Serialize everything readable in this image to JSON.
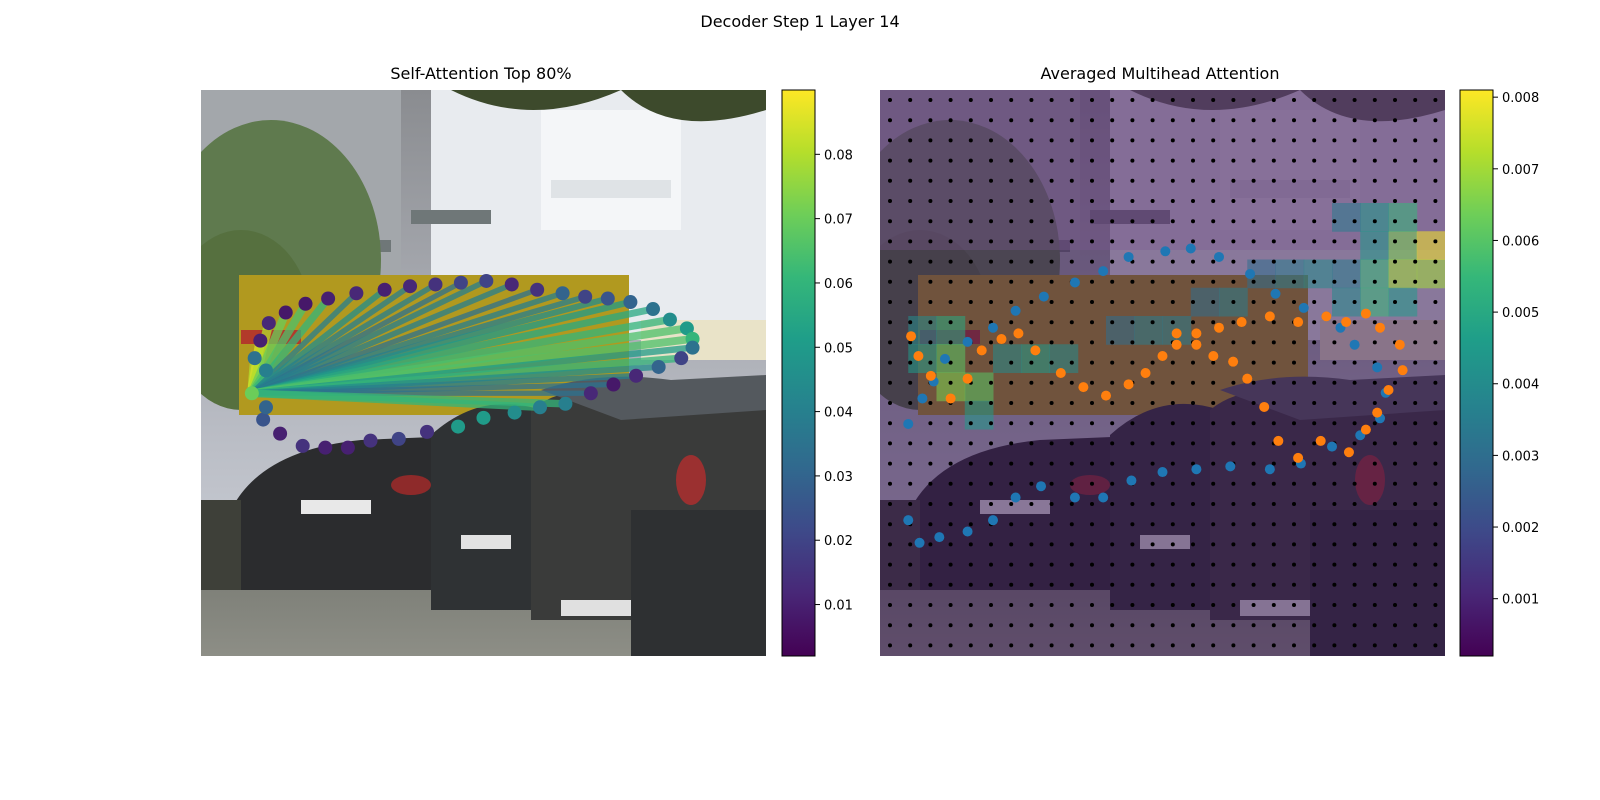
{
  "figure": {
    "suptitle": "Decoder Step 1 Layer 14"
  },
  "colors": {
    "viridis": [
      "#440154",
      "#482777",
      "#3e4989",
      "#31688e",
      "#26828e",
      "#1f9e89",
      "#35b779",
      "#6ece58",
      "#b5de2b",
      "#fde725"
    ],
    "blue_points": "#1f77b4",
    "orange_points": "#ff7f0e",
    "grid_dots": "#000000"
  },
  "chart_data": [
    {
      "type": "scatter",
      "title": "Self-Attention Top 80%",
      "background": "street scene photo with parked cars",
      "x_axis_visible": false,
      "y_axis_visible": false,
      "xlim": [
        0,
        1
      ],
      "ylim": [
        0,
        1
      ],
      "query_point_index": 29,
      "points": [
        [
          0.115,
          0.225,
          0.04
        ],
        [
          0.095,
          0.19,
          0.035
        ],
        [
          0.105,
          0.14,
          0.01
        ],
        [
          0.12,
          0.09,
          0.012
        ],
        [
          0.15,
          0.06,
          0.008
        ],
        [
          0.185,
          0.035,
          0.008
        ],
        [
          0.225,
          0.02,
          0.01
        ],
        [
          0.275,
          0.005,
          0.012
        ],
        [
          0.325,
          -0.005,
          0.01
        ],
        [
          0.37,
          -0.015,
          0.012
        ],
        [
          0.415,
          -0.02,
          0.015
        ],
        [
          0.46,
          -0.025,
          0.02
        ],
        [
          0.505,
          -0.03,
          0.02
        ],
        [
          0.55,
          -0.02,
          0.012
        ],
        [
          0.595,
          -0.005,
          0.015
        ],
        [
          0.64,
          0.005,
          0.03
        ],
        [
          0.68,
          0.015,
          0.02
        ],
        [
          0.72,
          0.02,
          0.025
        ],
        [
          0.76,
          0.03,
          0.03
        ],
        [
          0.8,
          0.05,
          0.035
        ],
        [
          0.83,
          0.08,
          0.045
        ],
        [
          0.86,
          0.105,
          0.05
        ],
        [
          0.87,
          0.135,
          0.06
        ],
        [
          0.87,
          0.16,
          0.035
        ],
        [
          0.85,
          0.19,
          0.02
        ],
        [
          0.81,
          0.215,
          0.03
        ],
        [
          0.77,
          0.24,
          0.012
        ],
        [
          0.73,
          0.265,
          0.008
        ],
        [
          0.69,
          0.29,
          0.012
        ],
        [
          0.645,
          0.32,
          0.04
        ],
        [
          0.6,
          0.33,
          0.04
        ],
        [
          0.555,
          0.345,
          0.045
        ],
        [
          0.5,
          0.36,
          0.05
        ],
        [
          0.455,
          0.385,
          0.05
        ],
        [
          0.4,
          0.4,
          0.015
        ],
        [
          0.35,
          0.42,
          0.02
        ],
        [
          0.3,
          0.425,
          0.015
        ],
        [
          0.26,
          0.445,
          0.01
        ],
        [
          0.22,
          0.445,
          0.01
        ],
        [
          0.18,
          0.44,
          0.015
        ],
        [
          0.14,
          0.405,
          0.01
        ],
        [
          0.11,
          0.365,
          0.025
        ],
        [
          0.115,
          0.33,
          0.03
        ],
        [
          0.09,
          0.29,
          0.07
        ]
      ],
      "attention": [
        [
          0,
          0.085
        ],
        [
          1,
          0.08
        ],
        [
          2,
          0.085
        ],
        [
          3,
          0.08
        ],
        [
          4,
          0.07
        ],
        [
          5,
          0.065
        ],
        [
          6,
          0.06
        ],
        [
          7,
          0.04
        ],
        [
          8,
          0.045
        ],
        [
          9,
          0.04
        ],
        [
          10,
          0.04
        ],
        [
          11,
          0.035
        ],
        [
          12,
          0.04
        ],
        [
          13,
          0.04
        ],
        [
          14,
          0.035
        ],
        [
          15,
          0.04
        ],
        [
          16,
          0.04
        ],
        [
          17,
          0.045
        ],
        [
          18,
          0.05
        ],
        [
          19,
          0.055
        ],
        [
          20,
          0.06
        ],
        [
          21,
          0.065
        ],
        [
          22,
          0.065
        ],
        [
          23,
          0.05
        ],
        [
          24,
          0.06
        ],
        [
          25,
          0.045
        ],
        [
          26,
          0.04
        ],
        [
          27,
          0.035
        ],
        [
          28,
          0.035
        ],
        [
          29,
          0.06
        ],
        [
          30,
          0.06
        ]
      ],
      "colorbar": {
        "ticks": [
          "0.01",
          "0.02",
          "0.03",
          "0.04",
          "0.05",
          "0.06",
          "0.07",
          "0.08"
        ],
        "range": [
          0.002,
          0.09
        ]
      }
    },
    {
      "type": "heatmap",
      "title": "Averaged Multihead Attention",
      "background": "same street scene, darkened, with attention heat overlay",
      "grid": "20x20 black reference dots",
      "series": [
        {
          "name": "blue",
          "points": [
            [
              0.05,
              0.59
            ],
            [
              0.075,
              0.545
            ],
            [
              0.095,
              0.515
            ],
            [
              0.115,
              0.475
            ],
            [
              0.155,
              0.445
            ],
            [
              0.2,
              0.42
            ],
            [
              0.24,
              0.39
            ],
            [
              0.29,
              0.365
            ],
            [
              0.345,
              0.34
            ],
            [
              0.395,
              0.32
            ],
            [
              0.44,
              0.295
            ],
            [
              0.505,
              0.285
            ],
            [
              0.55,
              0.28
            ],
            [
              0.6,
              0.295
            ],
            [
              0.655,
              0.325
            ],
            [
              0.7,
              0.36
            ],
            [
              0.75,
              0.385
            ],
            [
              0.79,
              0.4
            ],
            [
              0.815,
              0.42
            ],
            [
              0.84,
              0.45
            ],
            [
              0.88,
              0.49
            ],
            [
              0.895,
              0.535
            ],
            [
              0.885,
              0.58
            ],
            [
              0.85,
              0.61
            ],
            [
              0.8,
              0.63
            ],
            [
              0.745,
              0.66
            ],
            [
              0.69,
              0.67
            ],
            [
              0.62,
              0.665
            ],
            [
              0.56,
              0.67
            ],
            [
              0.5,
              0.675
            ],
            [
              0.445,
              0.69
            ],
            [
              0.395,
              0.72
            ],
            [
              0.345,
              0.72
            ],
            [
              0.285,
              0.7
            ],
            [
              0.24,
              0.72
            ],
            [
              0.2,
              0.76
            ],
            [
              0.155,
              0.78
            ],
            [
              0.105,
              0.79
            ],
            [
              0.07,
              0.8
            ],
            [
              0.05,
              0.76
            ]
          ]
        },
        {
          "name": "orange",
          "points": [
            [
              0.055,
              0.435
            ],
            [
              0.068,
              0.47
            ],
            [
              0.09,
              0.505
            ],
            [
              0.125,
              0.545
            ],
            [
              0.155,
              0.51
            ],
            [
              0.18,
              0.46
            ],
            [
              0.215,
              0.44
            ],
            [
              0.245,
              0.43
            ],
            [
              0.275,
              0.46
            ],
            [
              0.32,
              0.5
            ],
            [
              0.36,
              0.525
            ],
            [
              0.4,
              0.54
            ],
            [
              0.44,
              0.52
            ],
            [
              0.47,
              0.5
            ],
            [
              0.5,
              0.47
            ],
            [
              0.525,
              0.45
            ],
            [
              0.56,
              0.45
            ],
            [
              0.59,
              0.47
            ],
            [
              0.625,
              0.48
            ],
            [
              0.65,
              0.51
            ],
            [
              0.68,
              0.56
            ],
            [
              0.705,
              0.62
            ],
            [
              0.74,
              0.65
            ],
            [
              0.78,
              0.62
            ],
            [
              0.83,
              0.64
            ],
            [
              0.86,
              0.6
            ],
            [
              0.88,
              0.57
            ],
            [
              0.9,
              0.53
            ],
            [
              0.925,
              0.495
            ],
            [
              0.92,
              0.45
            ],
            [
              0.885,
              0.42
            ],
            [
              0.86,
              0.395
            ],
            [
              0.825,
              0.41
            ],
            [
              0.79,
              0.4
            ],
            [
              0.74,
              0.41
            ],
            [
              0.69,
              0.4
            ],
            [
              0.64,
              0.41
            ],
            [
              0.6,
              0.42
            ],
            [
              0.56,
              0.43
            ],
            [
              0.525,
              0.43
            ]
          ]
        }
      ],
      "heat_cells": [
        [
          1,
          8,
          0.004
        ],
        [
          1,
          9,
          0.0045
        ],
        [
          2,
          8,
          0.005
        ],
        [
          2,
          9,
          0.006
        ],
        [
          2,
          10,
          0.0065
        ],
        [
          3,
          10,
          0.006
        ],
        [
          3,
          11,
          0.0045
        ],
        [
          4,
          9,
          0.004
        ],
        [
          5,
          9,
          0.0045
        ],
        [
          6,
          9,
          0.004
        ],
        [
          8,
          8,
          0.003
        ],
        [
          9,
          8,
          0.0035
        ],
        [
          10,
          8,
          0.0035
        ],
        [
          11,
          7,
          0.003
        ],
        [
          12,
          7,
          0.0035
        ],
        [
          13,
          6,
          0.003
        ],
        [
          14,
          6,
          0.0035
        ],
        [
          15,
          6,
          0.004
        ],
        [
          16,
          6,
          0.0035
        ],
        [
          17,
          5,
          0.0045
        ],
        [
          17,
          6,
          0.0055
        ],
        [
          18,
          5,
          0.0065
        ],
        [
          18,
          6,
          0.007
        ],
        [
          19,
          5,
          0.008
        ],
        [
          19,
          6,
          0.007
        ],
        [
          18,
          4,
          0.0055
        ],
        [
          17,
          4,
          0.0045
        ],
        [
          16,
          4,
          0.0035
        ],
        [
          17,
          7,
          0.0055
        ],
        [
          18,
          7,
          0.0045
        ],
        [
          16,
          7,
          0.004
        ]
      ],
      "colorbar": {
        "ticks": [
          "0.001",
          "0.002",
          "0.003",
          "0.004",
          "0.005",
          "0.006",
          "0.007",
          "0.008"
        ],
        "range": [
          0.0002,
          0.0081
        ]
      }
    }
  ]
}
